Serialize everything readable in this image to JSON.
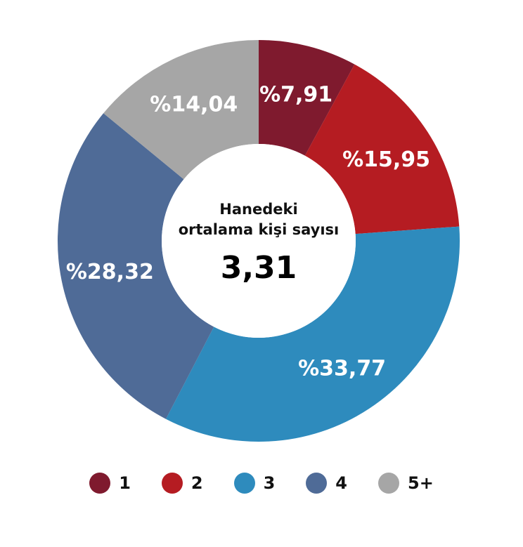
{
  "chart_data": {
    "type": "pie",
    "categories": [
      "1",
      "2",
      "3",
      "4",
      "5+"
    ],
    "values": [
      7.91,
      15.95,
      33.77,
      28.32,
      14.04
    ],
    "labels": [
      "%7,91",
      "%15,95",
      "%33,77",
      "%28,32",
      "%14,04"
    ],
    "colors": [
      "#7f1a2e",
      "#b51c22",
      "#2e8bbd",
      "#4f6b97",
      "#a6a6a6"
    ],
    "center_caption": [
      "Hanedeki",
      "ortalama kişi sayısı"
    ],
    "center_value": "3,31",
    "legend_position": "bottom"
  }
}
